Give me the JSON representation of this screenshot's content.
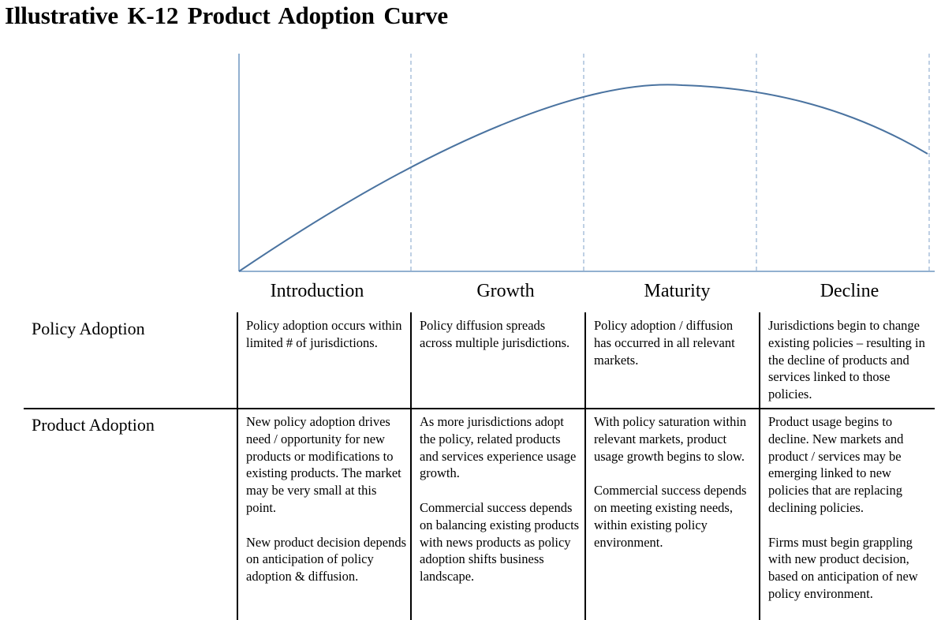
{
  "title": "Illustrative  K-12  Product  Adoption  Curve",
  "colors": {
    "curve": "#4a73a0",
    "axis": "#6f95c0",
    "divider": "#7fa0c8",
    "rule": "#000000"
  },
  "stages": [
    "Introduction",
    "Growth",
    "Maturity",
    "Decline"
  ],
  "rows": [
    {
      "header": "Policy Adoption",
      "cells": [
        [
          "Policy adoption occurs within limited # of jurisdictions."
        ],
        [
          "Policy diffusion spreads across multiple jurisdictions."
        ],
        [
          "Policy adoption / diffusion has occurred in all relevant markets."
        ],
        [
          "Jurisdictions begin to change existing policies – resulting in the decline of products and services linked to those policies."
        ]
      ]
    },
    {
      "header": "Product Adoption",
      "cells": [
        [
          "New policy adoption drives need / opportunity for new products or modifications to existing products.  The market may be very small at this point.",
          "New product decision depends on anticipation of policy adoption & diffusion."
        ],
        [
          "As more jurisdictions adopt the policy, related products and services experience usage growth.",
          "Commercial success depends on balancing existing products with news products as policy adoption shifts business landscape."
        ],
        [
          "With policy saturation within relevant markets, product usage growth begins to slow.",
          "Commercial success depends on meeting existing needs, within existing policy environment."
        ],
        [
          "Product usage begins to decline.  New markets and product / services may be emerging linked to new policies that are replacing declining policies.",
          "Firms must begin grappling with new product decision, based on anticipation of new policy environment."
        ]
      ]
    }
  ]
}
